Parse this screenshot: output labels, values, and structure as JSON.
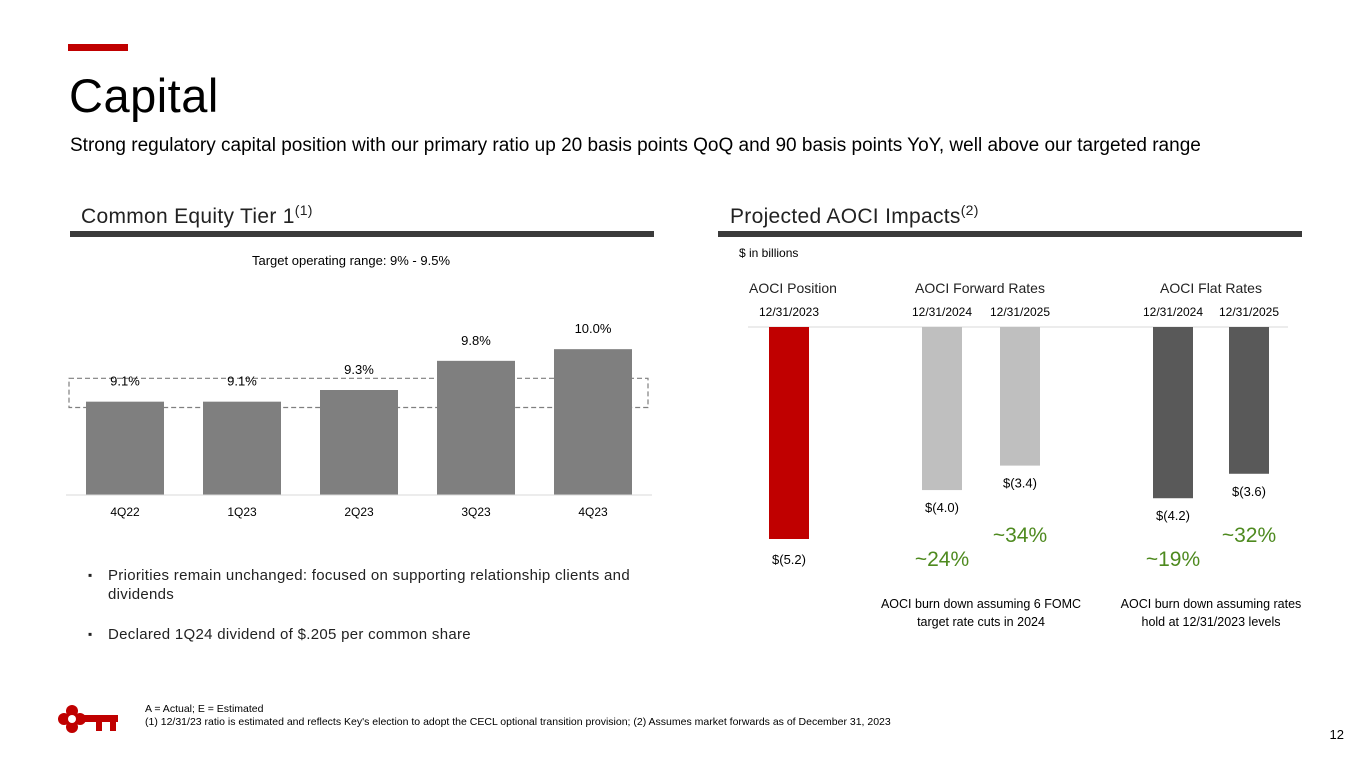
{
  "title": "Capital",
  "subtitle": "Strong regulatory capital position with our primary ratio up 20 basis points QoQ and 90 basis points YoY, well above our targeted range",
  "left_section": {
    "title": "Common Equity Tier 1",
    "title_sup": "(1)",
    "target_label": "Target operating range: 9% - 9.5%"
  },
  "right_section": {
    "title": "Projected AOCI Impacts",
    "title_sup": "(2)",
    "units_label": "$ in billions"
  },
  "bullets": [
    "Priorities remain unchanged: focused on supporting relationship clients and dividends",
    "Declared 1Q24 dividend of $.205 per common share"
  ],
  "footnote_line1": "A = Actual; E = Estimated",
  "footnote_line2": "(1) 12/31/23 ratio is estimated and reflects Key's election to adopt the CECL optional transition provision; (2) Assumes market forwards as of December 31, 2023",
  "page_number": "12",
  "colors": {
    "accent": "#c00000",
    "cet1_bar": "#7f7f7f",
    "forward_bar": "#bfbfbf",
    "flat_bar": "#595959",
    "green": "#4e8a1f",
    "rule": "#3b3b3b"
  },
  "chart_data": [
    {
      "type": "bar",
      "title": "Common Equity Tier 1",
      "categories": [
        "4Q22",
        "1Q23",
        "2Q23",
        "3Q23",
        "4Q23"
      ],
      "values": [
        9.1,
        9.1,
        9.3,
        9.8,
        10.0
      ],
      "labels": [
        "9.1%",
        "9.1%",
        "9.3%",
        "9.8%",
        "10.0%"
      ],
      "target_range": [
        9.0,
        9.5
      ],
      "ylim": [
        7.5,
        10.5
      ]
    },
    {
      "type": "bar",
      "title": "Projected AOCI Impacts",
      "unit": "$ in billions",
      "groups": [
        {
          "name": "AOCI Position",
          "bars": [
            {
              "date": "12/31/2023",
              "value": -5.2,
              "label": "$(5.2)",
              "color": "#c00000"
            }
          ],
          "pct": []
        },
        {
          "name": "AOCI Forward Rates",
          "bars": [
            {
              "date": "12/31/2024",
              "value": -4.0,
              "label": "$(4.0)",
              "color": "#bfbfbf",
              "pct": "~24%"
            },
            {
              "date": "12/31/2025",
              "value": -3.4,
              "label": "$(3.4)",
              "color": "#bfbfbf",
              "pct": "~34%"
            }
          ],
          "note": "AOCI burn down assuming 6 FOMC target rate cuts in 2024"
        },
        {
          "name": "AOCI Flat Rates",
          "bars": [
            {
              "date": "12/31/2024",
              "value": -4.2,
              "label": "$(4.2)",
              "color": "#595959",
              "pct": "~19%"
            },
            {
              "date": "12/31/2025",
              "value": -3.6,
              "label": "$(3.6)",
              "color": "#595959",
              "pct": "~32%"
            }
          ],
          "note": "AOCI burn down assuming rates hold at 12/31/2023 levels"
        }
      ],
      "ylim": [
        -5.2,
        0
      ]
    }
  ]
}
